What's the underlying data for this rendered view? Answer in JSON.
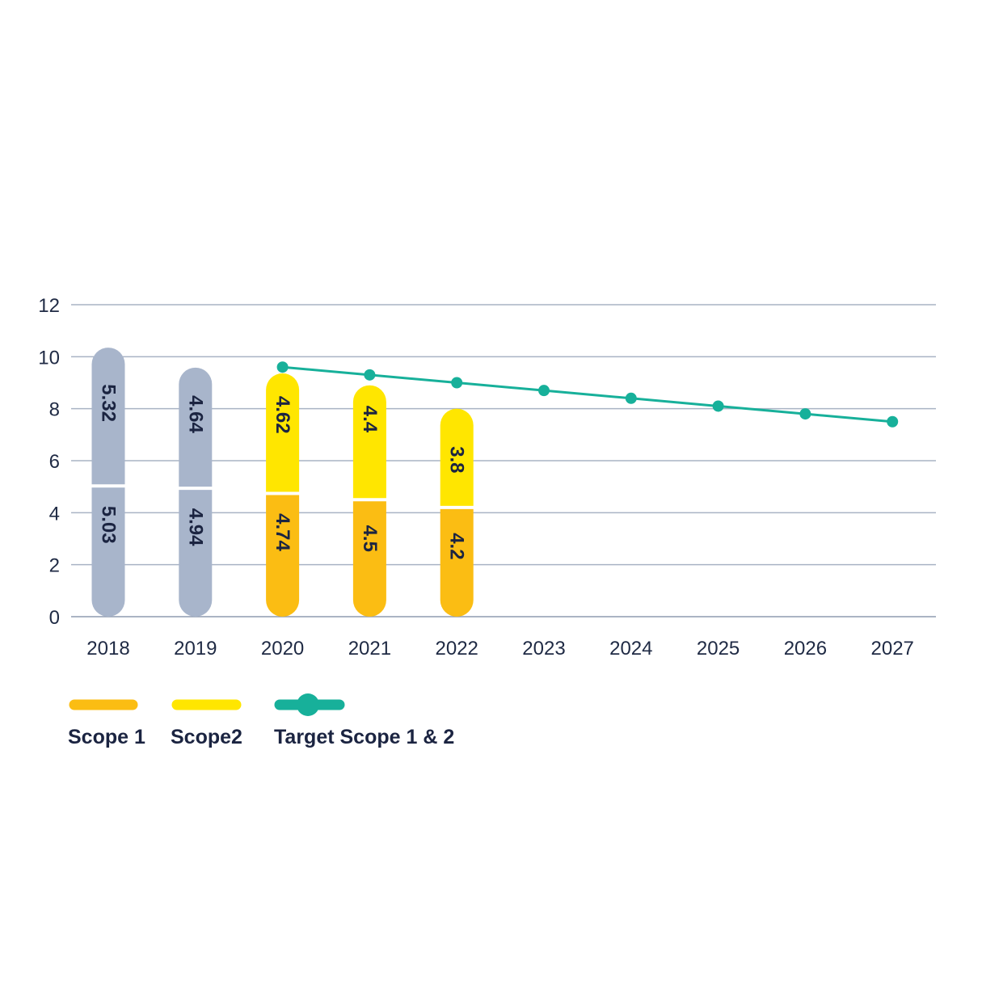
{
  "chart_data": {
    "type": "bar",
    "stacked": true,
    "categories": [
      "2018",
      "2019",
      "2020",
      "2021",
      "2022",
      "2023",
      "2024",
      "2025",
      "2026",
      "2027"
    ],
    "ylim": [
      0,
      12
    ],
    "yticks": [
      0,
      2,
      4,
      6,
      8,
      10,
      12
    ],
    "grid": true,
    "legend_position": "bottom-left",
    "series": [
      {
        "name": "Scope 1",
        "kind": "bar",
        "color": "#fbbd13",
        "historic_color": "#a8b5cb",
        "historic_categories": [
          "2018",
          "2019"
        ],
        "values": [
          5.03,
          4.94,
          4.74,
          4.5,
          4.2,
          null,
          null,
          null,
          null,
          null
        ]
      },
      {
        "name": "Scope2",
        "kind": "bar",
        "color": "#ffe600",
        "historic_color": "#a8b5cb",
        "historic_categories": [
          "2018",
          "2019"
        ],
        "values": [
          5.32,
          4.64,
          4.62,
          4.4,
          3.8,
          null,
          null,
          null,
          null,
          null
        ]
      },
      {
        "name": "Target Scope 1 & 2",
        "kind": "line",
        "color": "#17b09a",
        "values": [
          null,
          null,
          9.6,
          9.3,
          9.0,
          8.7,
          8.4,
          8.1,
          7.8,
          7.5
        ]
      }
    ],
    "bar_labels": {
      "Scope 1": [
        "5.03",
        "4.94",
        "4.74",
        "4.5",
        "4.2"
      ],
      "Scope2": [
        "5.32",
        "4.64",
        "4.62",
        "4.4",
        "3.8"
      ]
    }
  },
  "legend": {
    "scope1": "Scope 1",
    "scope2": "Scope2",
    "target": "Target Scope 1 & 2"
  }
}
